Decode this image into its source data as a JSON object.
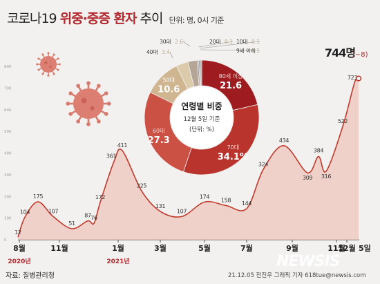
{
  "title": {
    "prefix": "코로나19",
    "emph": "위중·중증 환자",
    "suffix": "추이"
  },
  "unit": "단위: 명, 0시 기준",
  "source": "자료: 질병관리청",
  "credit": "21.12.05 전진우 그래픽 기자 618tue@newsis.com",
  "logo": "NEWSIS",
  "chart_data": [
    {
      "type": "area",
      "title": "",
      "ylim": [
        0,
        800
      ],
      "yticks": [
        "0",
        "100",
        "200",
        "300",
        "400",
        "500",
        "600",
        "700",
        "800"
      ],
      "xticks": [
        {
          "label": "8월",
          "year": "2020년"
        },
        {
          "label": "11월",
          "year": ""
        },
        {
          "label": "1월",
          "year": "2021년"
        },
        {
          "label": "3월",
          "year": ""
        },
        {
          "label": "5월",
          "year": ""
        },
        {
          "label": "7월",
          "year": ""
        },
        {
          "label": "9월",
          "year": ""
        },
        {
          "label": "11월",
          "year": ""
        },
        {
          "label": "12월",
          "year": ""
        },
        {
          "label": "5일",
          "year": ""
        }
      ],
      "points": [
        {
          "label": "12",
          "value": 12
        },
        {
          "label": "104",
          "value": 104
        },
        {
          "label": "175",
          "value": 175
        },
        {
          "label": "107",
          "value": 107
        },
        {
          "label": "51",
          "value": 51
        },
        {
          "label": "87",
          "value": 87
        },
        {
          "label": "76",
          "value": 76
        },
        {
          "label": "172",
          "value": 172
        },
        {
          "label": "361",
          "value": 361
        },
        {
          "label": "411",
          "value": 411
        },
        {
          "label": "225",
          "value": 225
        },
        {
          "label": "131",
          "value": 131
        },
        {
          "label": "107",
          "value": 107
        },
        {
          "label": "174",
          "value": 174
        },
        {
          "label": "158",
          "value": 158
        },
        {
          "label": "144",
          "value": 144
        },
        {
          "label": "324",
          "value": 324
        },
        {
          "label": "434",
          "value": 434
        },
        {
          "label": "309",
          "value": 309
        },
        {
          "label": "384",
          "value": 384
        },
        {
          "label": "316",
          "value": 316
        },
        {
          "label": "522",
          "value": 522
        },
        {
          "label": "723",
          "value": 723
        }
      ],
      "last": {
        "value": 744,
        "value_label": "744명",
        "change": "(−8)"
      },
      "colors": {
        "line": "#c0392b",
        "fill": "#efc5bc",
        "accent": "#b2282e"
      }
    },
    {
      "type": "pie",
      "title": "연령별 비중",
      "subtitle": "12월 5일 기준",
      "unit": "(단위: %)",
      "slices": [
        {
          "name": "80세 이상",
          "value": 21.6,
          "label": "21.6",
          "color": "#9e1b1f"
        },
        {
          "name": "70대",
          "value": 34.1,
          "label": "34.1%",
          "color": "#b8342d"
        },
        {
          "name": "60대",
          "value": 27.3,
          "label": "27.3",
          "color": "#cc5145"
        },
        {
          "name": "50대",
          "value": 10.6,
          "label": "10.6",
          "color": "#cfb690"
        },
        {
          "name": "40대",
          "value": 3.4,
          "label": "3.4",
          "color": "#dccbab"
        },
        {
          "name": "30대",
          "value": 2.6,
          "label": "2.6",
          "color": "#b4a596"
        },
        {
          "name": "20대",
          "value": 0.1,
          "label": "0.1",
          "color": "#8e8e8e"
        },
        {
          "name": "10대",
          "value": 0.1,
          "label": "0.1",
          "color": "#9a9a9a"
        },
        {
          "name": "9세 이하",
          "value": 0.1,
          "label": "0.1",
          "color": "#a6a6a6"
        }
      ]
    }
  ]
}
